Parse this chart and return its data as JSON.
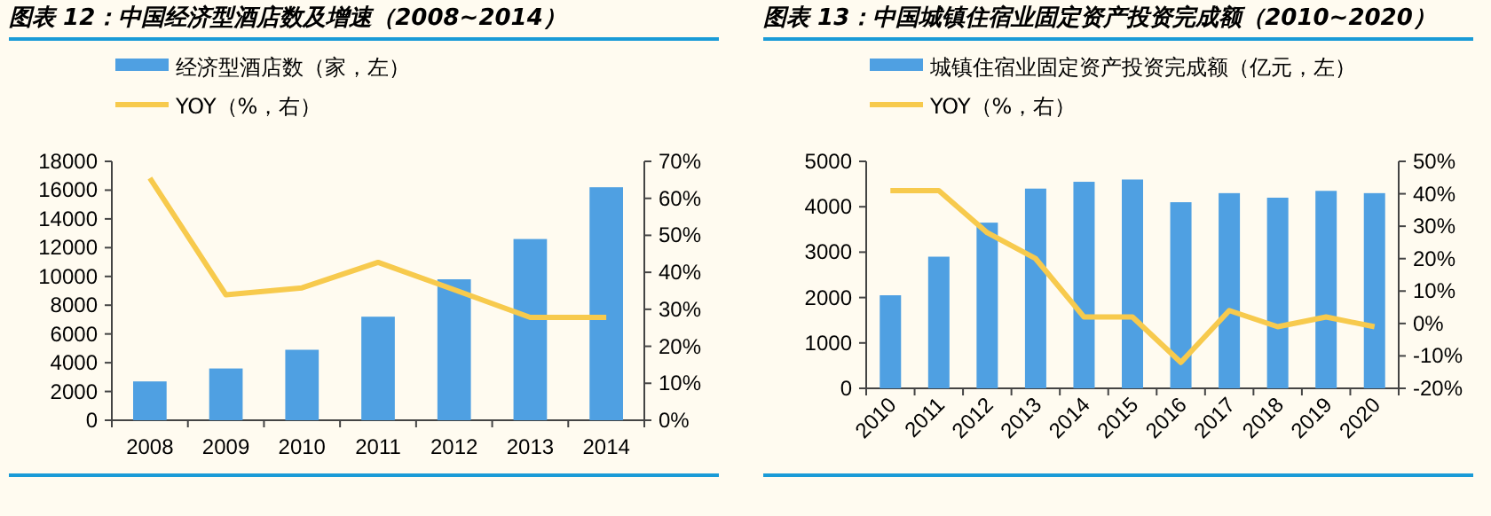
{
  "chart_data": [
    {
      "type": "bar",
      "title": "图表 12：中国经济型酒店数及增速（2008~2014）",
      "categories": [
        "2008",
        "2009",
        "2010",
        "2011",
        "2012",
        "2013",
        "2014"
      ],
      "series": [
        {
          "name": "经济型酒店数（家，左）",
          "color": "#4fa0e2",
          "values": [
            2700,
            3600,
            4900,
            7200,
            9800,
            12600,
            16200
          ]
        },
        {
          "name": "YOY（%，右）",
          "type": "line",
          "axis": "y2",
          "color": "#f7ca4d",
          "values": [
            65.5,
            33.9,
            35.8,
            42.7,
            35.3,
            27.8,
            27.8
          ]
        }
      ],
      "ylim": [
        0,
        18000
      ],
      "yticks": [
        0,
        2000,
        4000,
        6000,
        8000,
        10000,
        12000,
        14000,
        16000,
        18000
      ],
      "y2lim": [
        0,
        70
      ],
      "y2ticks": [
        {
          "value": 0,
          "label": "0%"
        },
        {
          "value": 10,
          "label": "10%"
        },
        {
          "value": 20,
          "label": "20%"
        },
        {
          "value": 30,
          "label": "30%"
        },
        {
          "value": 40,
          "label": "40%"
        },
        {
          "value": 50,
          "label": "50%"
        },
        {
          "value": 60,
          "label": "60%"
        },
        {
          "value": 70,
          "label": "70%"
        }
      ],
      "legend": "top",
      "grid": false
    },
    {
      "type": "bar",
      "title": "图表 13：中国城镇住宿业固定资产投资完成额（2010~2020）",
      "categories": [
        "2010",
        "2011",
        "2012",
        "2013",
        "2014",
        "2015",
        "2016",
        "2017",
        "2018",
        "2019",
        "2020"
      ],
      "series": [
        {
          "name": "城镇住宿业固定资产投资完成额（亿元，左）",
          "color": "#4fa0e2",
          "values": [
            2050,
            2900,
            3650,
            4400,
            4550,
            4600,
            4100,
            4300,
            4200,
            4350,
            4300
          ]
        },
        {
          "name": "YOY（%，右）",
          "type": "line",
          "axis": "y2",
          "color": "#f7ca4d",
          "values": [
            41,
            41,
            28,
            20,
            2,
            2,
            -12,
            4,
            -1,
            2,
            -1
          ]
        }
      ],
      "ylim": [
        0,
        5000
      ],
      "yticks": [
        0,
        1000,
        2000,
        3000,
        4000,
        5000
      ],
      "y2lim": [
        -20,
        50
      ],
      "y2ticks": [
        {
          "value": -20,
          "label": "-20%"
        },
        {
          "value": -10,
          "label": "-10%"
        },
        {
          "value": 0,
          "label": "0%"
        },
        {
          "value": 10,
          "label": "10%"
        },
        {
          "value": 20,
          "label": "20%"
        },
        {
          "value": 30,
          "label": "30%"
        },
        {
          "value": 40,
          "label": "40%"
        },
        {
          "value": 50,
          "label": "50%"
        }
      ],
      "legend": "top",
      "grid": false
    }
  ]
}
